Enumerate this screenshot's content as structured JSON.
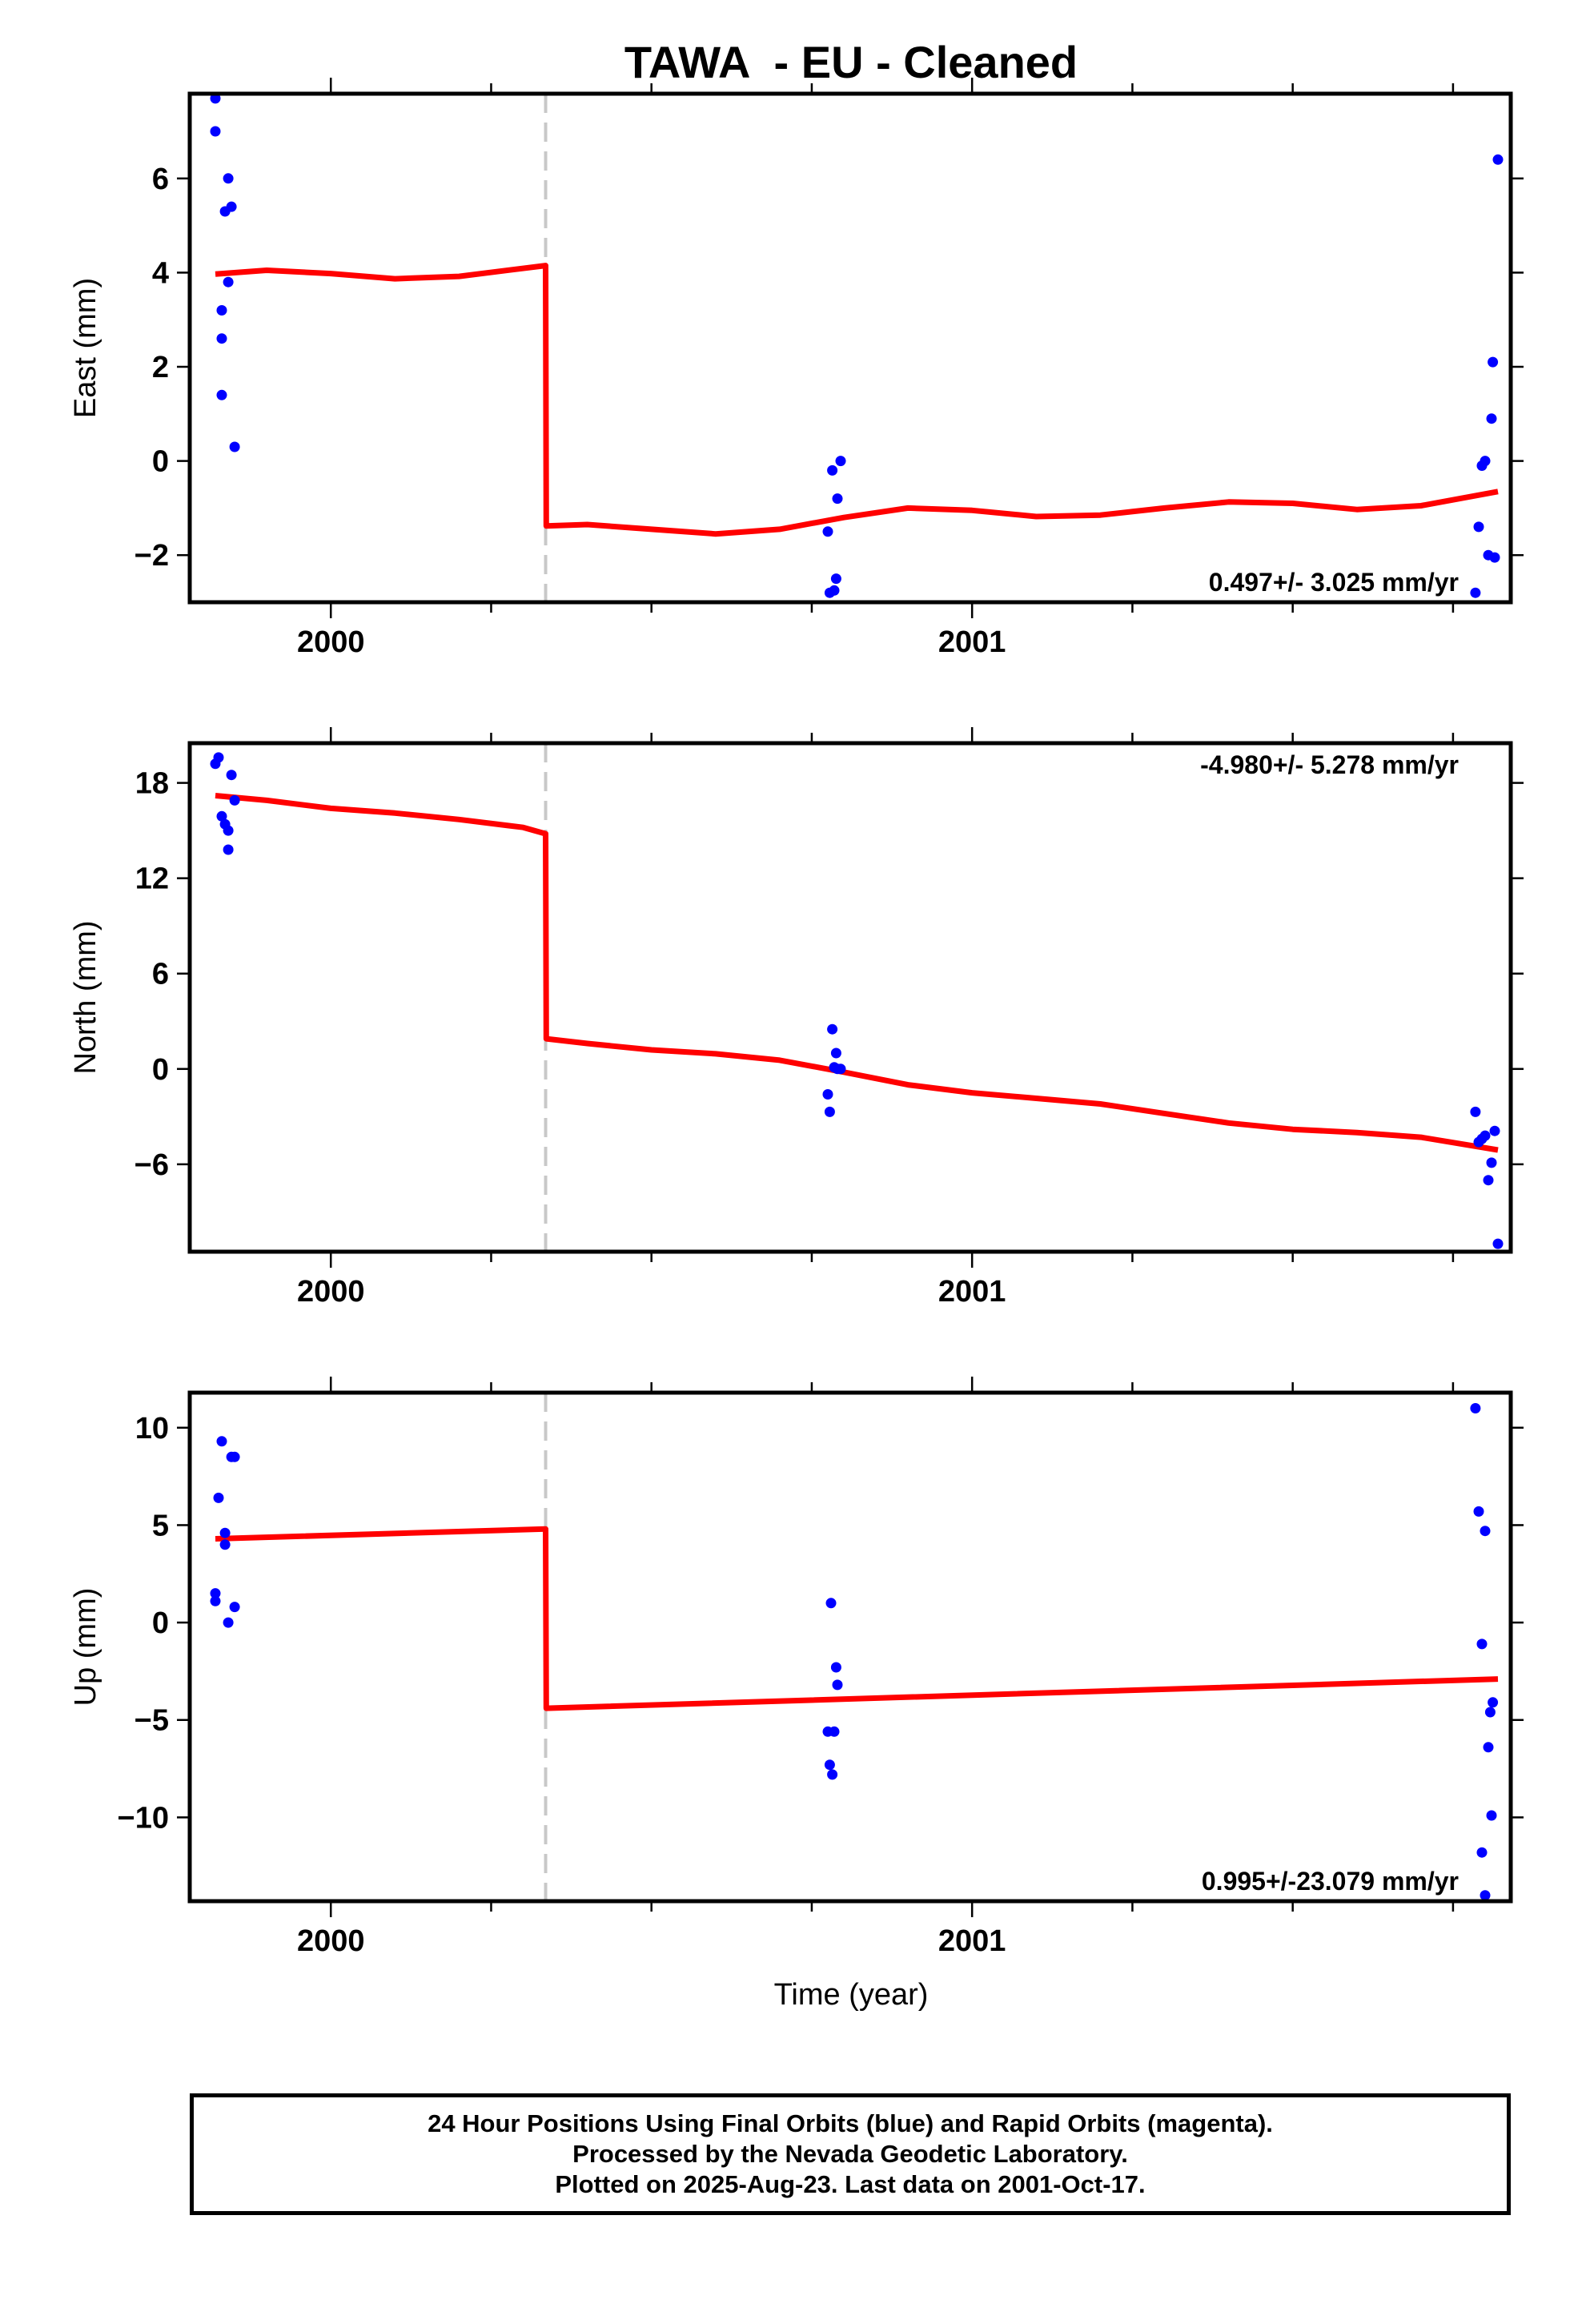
{
  "title": "TAWA  - EU - Cleaned",
  "xlabel": "Time (year)",
  "caption": [
    "24 Hour Positions Using Final Orbits (blue) and Rapid Orbits (magenta).",
    "Processed by the Nevada Geodetic Laboratory.",
    "Plotted on 2025-Aug-23. Last data on 2001-Oct-17."
  ],
  "colors": {
    "points": "#0000ff",
    "fit": "#ff0000",
    "step_line": "#c8c8c8",
    "frame": "#000000"
  },
  "chart_data": [
    {
      "type": "scatter",
      "panel": "east",
      "ylabel": "East (mm)",
      "xlim": [
        1999.78,
        2001.84
      ],
      "ylim": [
        -3.0,
        7.8
      ],
      "x_ticks": [
        2000,
        2001
      ],
      "y_ticks": [
        -2,
        0,
        2,
        4,
        6
      ],
      "grid": false,
      "rate_label": "0.497+/- 3.025 mm/yr",
      "rate_position": "bottom-right",
      "step_time": 2000.335,
      "points": [
        [
          1999.82,
          7.7
        ],
        [
          1999.82,
          7.0
        ],
        [
          1999.83,
          1.4
        ],
        [
          1999.83,
          2.6
        ],
        [
          1999.83,
          3.2
        ],
        [
          1999.835,
          5.3
        ],
        [
          1999.84,
          6.0
        ],
        [
          1999.84,
          3.8
        ],
        [
          1999.845,
          5.4
        ],
        [
          1999.85,
          0.3
        ],
        [
          2000.775,
          -1.5
        ],
        [
          2000.778,
          -2.8
        ],
        [
          2000.782,
          -0.2
        ],
        [
          2000.785,
          -2.75
        ],
        [
          2000.788,
          -2.5
        ],
        [
          2000.79,
          -0.8
        ],
        [
          2000.795,
          0.0
        ],
        [
          2001.785,
          -2.8
        ],
        [
          2001.79,
          -1.4
        ],
        [
          2001.795,
          -0.1
        ],
        [
          2001.8,
          0.0
        ],
        [
          2001.805,
          -2.0
        ],
        [
          2001.81,
          0.9
        ],
        [
          2001.812,
          2.1
        ],
        [
          2001.815,
          -2.05
        ],
        [
          2001.82,
          6.4
        ]
      ],
      "fit": [
        [
          1999.82,
          3.97
        ],
        [
          1999.9,
          4.05
        ],
        [
          2000.0,
          3.98
        ],
        [
          2000.1,
          3.87
        ],
        [
          2000.2,
          3.92
        ],
        [
          2000.335,
          4.15
        ],
        [
          2000.336,
          -1.38
        ],
        [
          2000.4,
          -1.35
        ],
        [
          2000.5,
          -1.45
        ],
        [
          2000.6,
          -1.55
        ],
        [
          2000.7,
          -1.45
        ],
        [
          2000.8,
          -1.2
        ],
        [
          2000.9,
          -1.0
        ],
        [
          2001.0,
          -1.05
        ],
        [
          2001.1,
          -1.18
        ],
        [
          2001.2,
          -1.15
        ],
        [
          2001.3,
          -1.0
        ],
        [
          2001.4,
          -0.87
        ],
        [
          2001.5,
          -0.9
        ],
        [
          2001.6,
          -1.03
        ],
        [
          2001.7,
          -0.95
        ],
        [
          2001.82,
          -0.65
        ]
      ]
    },
    {
      "type": "scatter",
      "panel": "north",
      "ylabel": "North (mm)",
      "xlim": [
        1999.78,
        2001.84
      ],
      "ylim": [
        -11.5,
        20.5
      ],
      "x_ticks": [
        2000,
        2001
      ],
      "y_ticks": [
        -6,
        0,
        6,
        12,
        18
      ],
      "grid": false,
      "rate_label": "-4.980+/- 5.278 mm/yr",
      "rate_position": "top-right",
      "step_time": 2000.335,
      "points": [
        [
          1999.82,
          19.2
        ],
        [
          1999.825,
          19.6
        ],
        [
          1999.83,
          15.9
        ],
        [
          1999.835,
          15.4
        ],
        [
          1999.84,
          15.0
        ],
        [
          1999.84,
          13.8
        ],
        [
          1999.845,
          18.5
        ],
        [
          1999.85,
          16.9
        ],
        [
          2000.775,
          -1.6
        ],
        [
          2000.778,
          -2.7
        ],
        [
          2000.782,
          2.5
        ],
        [
          2000.785,
          0.1
        ],
        [
          2000.788,
          1.0
        ],
        [
          2000.79,
          0.0
        ],
        [
          2000.795,
          0.0
        ],
        [
          2001.785,
          -2.7
        ],
        [
          2001.79,
          -4.6
        ],
        [
          2001.795,
          -4.4
        ],
        [
          2001.8,
          -4.2
        ],
        [
          2001.805,
          -7.0
        ],
        [
          2001.81,
          -5.9
        ],
        [
          2001.815,
          -3.9
        ],
        [
          2001.82,
          -11.0
        ]
      ],
      "fit": [
        [
          1999.82,
          17.2
        ],
        [
          1999.9,
          16.9
        ],
        [
          2000.0,
          16.4
        ],
        [
          2000.1,
          16.1
        ],
        [
          2000.2,
          15.7
        ],
        [
          2000.3,
          15.2
        ],
        [
          2000.335,
          14.8
        ],
        [
          2000.336,
          1.9
        ],
        [
          2000.4,
          1.6
        ],
        [
          2000.5,
          1.2
        ],
        [
          2000.6,
          0.95
        ],
        [
          2000.7,
          0.55
        ],
        [
          2000.8,
          -0.2
        ],
        [
          2000.9,
          -1.0
        ],
        [
          2001.0,
          -1.5
        ],
        [
          2001.1,
          -1.85
        ],
        [
          2001.2,
          -2.2
        ],
        [
          2001.3,
          -2.8
        ],
        [
          2001.4,
          -3.4
        ],
        [
          2001.5,
          -3.8
        ],
        [
          2001.6,
          -4.0
        ],
        [
          2001.7,
          -4.3
        ],
        [
          2001.82,
          -5.1
        ]
      ]
    },
    {
      "type": "scatter",
      "panel": "up",
      "ylabel": "Up (mm)",
      "xlim": [
        1999.78,
        2001.84
      ],
      "ylim": [
        -14.3,
        11.8
      ],
      "x_ticks": [
        2000,
        2001
      ],
      "y_ticks": [
        -10,
        -5,
        0,
        5,
        10
      ],
      "grid": false,
      "rate_label": "0.995+/-23.079 mm/yr",
      "rate_position": "bottom-right",
      "step_time": 2000.335,
      "points": [
        [
          1999.82,
          1.1
        ],
        [
          1999.82,
          1.5
        ],
        [
          1999.825,
          6.4
        ],
        [
          1999.83,
          9.3
        ],
        [
          1999.835,
          4.0
        ],
        [
          1999.835,
          4.6
        ],
        [
          1999.84,
          0.0
        ],
        [
          1999.845,
          8.5
        ],
        [
          1999.85,
          8.5
        ],
        [
          1999.85,
          0.8
        ],
        [
          2000.775,
          -5.6
        ],
        [
          2000.778,
          -7.3
        ],
        [
          2000.78,
          1.0
        ],
        [
          2000.782,
          -7.8
        ],
        [
          2000.785,
          -5.6
        ],
        [
          2000.788,
          -2.3
        ],
        [
          2000.79,
          -3.2
        ],
        [
          2001.785,
          11.0
        ],
        [
          2001.79,
          5.7
        ],
        [
          2001.795,
          -1.1
        ],
        [
          2001.8,
          4.7
        ],
        [
          2001.805,
          -6.4
        ],
        [
          2001.808,
          -4.6
        ],
        [
          2001.812,
          -4.1
        ],
        [
          2001.81,
          -9.9
        ],
        [
          2001.795,
          -11.8
        ],
        [
          2001.8,
          -14.0
        ]
      ],
      "fit": [
        [
          1999.82,
          4.3
        ],
        [
          2000.335,
          4.8
        ],
        [
          2000.336,
          -4.4
        ],
        [
          2001.82,
          -2.9
        ]
      ]
    }
  ]
}
